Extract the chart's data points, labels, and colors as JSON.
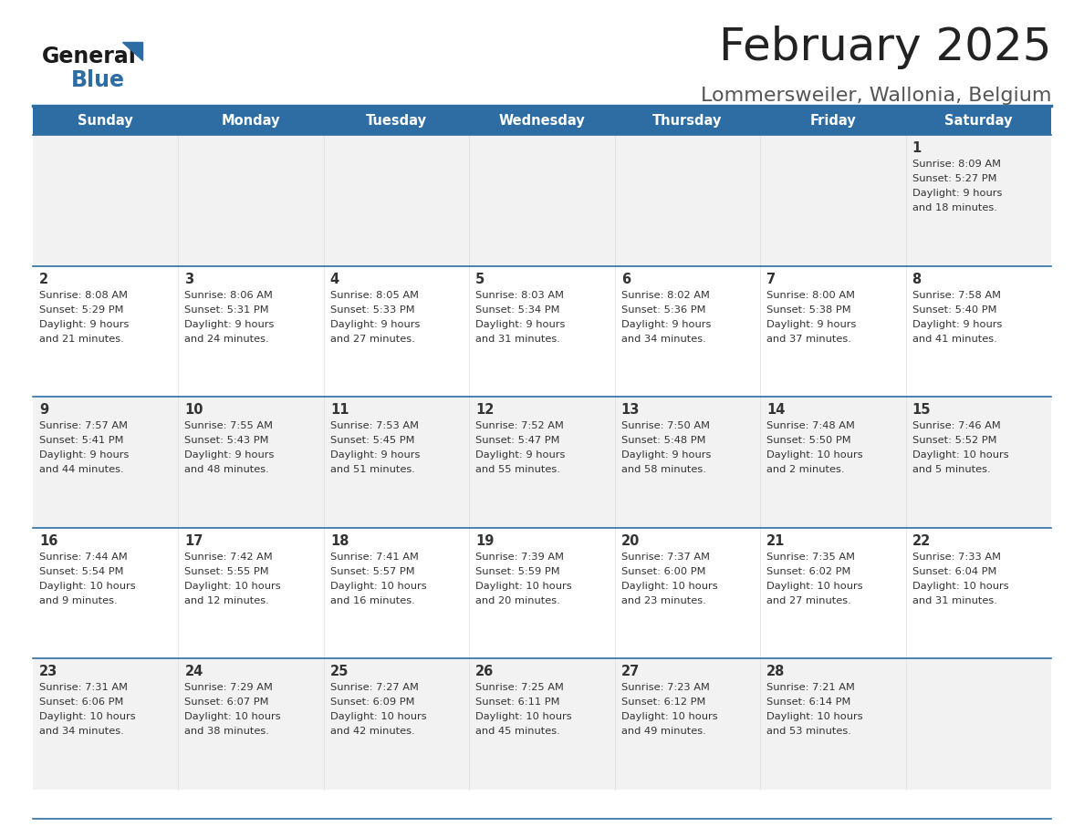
{
  "title": "February 2025",
  "subtitle": "Lommersweiler, Wallonia, Belgium",
  "title_color": "#222222",
  "subtitle_color": "#555555",
  "header_bg_color": "#2E6DA4",
  "header_text_color": "#FFFFFF",
  "cell_bg_even": "#F2F2F2",
  "cell_bg_odd": "#FFFFFF",
  "border_color": "#2E6DA4",
  "day_number_color": "#333333",
  "text_color": "#333333",
  "days_of_week": [
    "Sunday",
    "Monday",
    "Tuesday",
    "Wednesday",
    "Thursday",
    "Friday",
    "Saturday"
  ],
  "calendar_data": [
    [
      null,
      null,
      null,
      null,
      null,
      null,
      {
        "day": "1",
        "sunrise": "8:09 AM",
        "sunset": "5:27 PM",
        "daylight_h": "9 hours",
        "daylight_m": "18 minutes."
      }
    ],
    [
      {
        "day": "2",
        "sunrise": "8:08 AM",
        "sunset": "5:29 PM",
        "daylight_h": "9 hours",
        "daylight_m": "21 minutes."
      },
      {
        "day": "3",
        "sunrise": "8:06 AM",
        "sunset": "5:31 PM",
        "daylight_h": "9 hours",
        "daylight_m": "24 minutes."
      },
      {
        "day": "4",
        "sunrise": "8:05 AM",
        "sunset": "5:33 PM",
        "daylight_h": "9 hours",
        "daylight_m": "27 minutes."
      },
      {
        "day": "5",
        "sunrise": "8:03 AM",
        "sunset": "5:34 PM",
        "daylight_h": "9 hours",
        "daylight_m": "31 minutes."
      },
      {
        "day": "6",
        "sunrise": "8:02 AM",
        "sunset": "5:36 PM",
        "daylight_h": "9 hours",
        "daylight_m": "34 minutes."
      },
      {
        "day": "7",
        "sunrise": "8:00 AM",
        "sunset": "5:38 PM",
        "daylight_h": "9 hours",
        "daylight_m": "37 minutes."
      },
      {
        "day": "8",
        "sunrise": "7:58 AM",
        "sunset": "5:40 PM",
        "daylight_h": "9 hours",
        "daylight_m": "41 minutes."
      }
    ],
    [
      {
        "day": "9",
        "sunrise": "7:57 AM",
        "sunset": "5:41 PM",
        "daylight_h": "9 hours",
        "daylight_m": "44 minutes."
      },
      {
        "day": "10",
        "sunrise": "7:55 AM",
        "sunset": "5:43 PM",
        "daylight_h": "9 hours",
        "daylight_m": "48 minutes."
      },
      {
        "day": "11",
        "sunrise": "7:53 AM",
        "sunset": "5:45 PM",
        "daylight_h": "9 hours",
        "daylight_m": "51 minutes."
      },
      {
        "day": "12",
        "sunrise": "7:52 AM",
        "sunset": "5:47 PM",
        "daylight_h": "9 hours",
        "daylight_m": "55 minutes."
      },
      {
        "day": "13",
        "sunrise": "7:50 AM",
        "sunset": "5:48 PM",
        "daylight_h": "9 hours",
        "daylight_m": "58 minutes."
      },
      {
        "day": "14",
        "sunrise": "7:48 AM",
        "sunset": "5:50 PM",
        "daylight_h": "10 hours",
        "daylight_m": "2 minutes."
      },
      {
        "day": "15",
        "sunrise": "7:46 AM",
        "sunset": "5:52 PM",
        "daylight_h": "10 hours",
        "daylight_m": "5 minutes."
      }
    ],
    [
      {
        "day": "16",
        "sunrise": "7:44 AM",
        "sunset": "5:54 PM",
        "daylight_h": "10 hours",
        "daylight_m": "9 minutes."
      },
      {
        "day": "17",
        "sunrise": "7:42 AM",
        "sunset": "5:55 PM",
        "daylight_h": "10 hours",
        "daylight_m": "12 minutes."
      },
      {
        "day": "18",
        "sunrise": "7:41 AM",
        "sunset": "5:57 PM",
        "daylight_h": "10 hours",
        "daylight_m": "16 minutes."
      },
      {
        "day": "19",
        "sunrise": "7:39 AM",
        "sunset": "5:59 PM",
        "daylight_h": "10 hours",
        "daylight_m": "20 minutes."
      },
      {
        "day": "20",
        "sunrise": "7:37 AM",
        "sunset": "6:00 PM",
        "daylight_h": "10 hours",
        "daylight_m": "23 minutes."
      },
      {
        "day": "21",
        "sunrise": "7:35 AM",
        "sunset": "6:02 PM",
        "daylight_h": "10 hours",
        "daylight_m": "27 minutes."
      },
      {
        "day": "22",
        "sunrise": "7:33 AM",
        "sunset": "6:04 PM",
        "daylight_h": "10 hours",
        "daylight_m": "31 minutes."
      }
    ],
    [
      {
        "day": "23",
        "sunrise": "7:31 AM",
        "sunset": "6:06 PM",
        "daylight_h": "10 hours",
        "daylight_m": "34 minutes."
      },
      {
        "day": "24",
        "sunrise": "7:29 AM",
        "sunset": "6:07 PM",
        "daylight_h": "10 hours",
        "daylight_m": "38 minutes."
      },
      {
        "day": "25",
        "sunrise": "7:27 AM",
        "sunset": "6:09 PM",
        "daylight_h": "10 hours",
        "daylight_m": "42 minutes."
      },
      {
        "day": "26",
        "sunrise": "7:25 AM",
        "sunset": "6:11 PM",
        "daylight_h": "10 hours",
        "daylight_m": "45 minutes."
      },
      {
        "day": "27",
        "sunrise": "7:23 AM",
        "sunset": "6:12 PM",
        "daylight_h": "10 hours",
        "daylight_m": "49 minutes."
      },
      {
        "day": "28",
        "sunrise": "7:21 AM",
        "sunset": "6:14 PM",
        "daylight_h": "10 hours",
        "daylight_m": "53 minutes."
      },
      null
    ]
  ],
  "logo_text_general": "General",
  "logo_text_blue": "Blue",
  "logo_color_general": "#1a1a1a",
  "logo_color_blue": "#2E6DA4",
  "logo_triangle_color": "#2E6DA4"
}
